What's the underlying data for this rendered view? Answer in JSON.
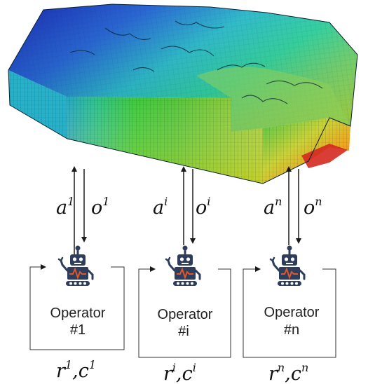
{
  "operators": [
    {
      "name": "Operator",
      "id": "#1",
      "action": "a",
      "action_sup": "1",
      "observation": "o",
      "observation_sup": "1",
      "reward": "r",
      "reward_sup": "1",
      "cost": "c",
      "cost_sup": "1"
    },
    {
      "name": "Operator",
      "id": "#i",
      "action": "a",
      "action_sup": "i",
      "observation": "o",
      "observation_sup": "i",
      "reward": "r",
      "reward_sup": "i",
      "cost": "c",
      "cost_sup": "i"
    },
    {
      "name": "Operator",
      "id": "#n",
      "action": "a",
      "action_sup": "n",
      "observation": "o",
      "observation_sup": "n",
      "reward": "r",
      "reward_sup": "n",
      "cost": "c",
      "cost_sup": "n"
    }
  ],
  "separator": ",",
  "colors": {
    "robot": "#2e3d5c",
    "robot_accent": "#e0582a",
    "reservoir_low": "#1432c8",
    "reservoir_mid": "#22c4c4",
    "reservoir_high": "#d81e1e"
  }
}
